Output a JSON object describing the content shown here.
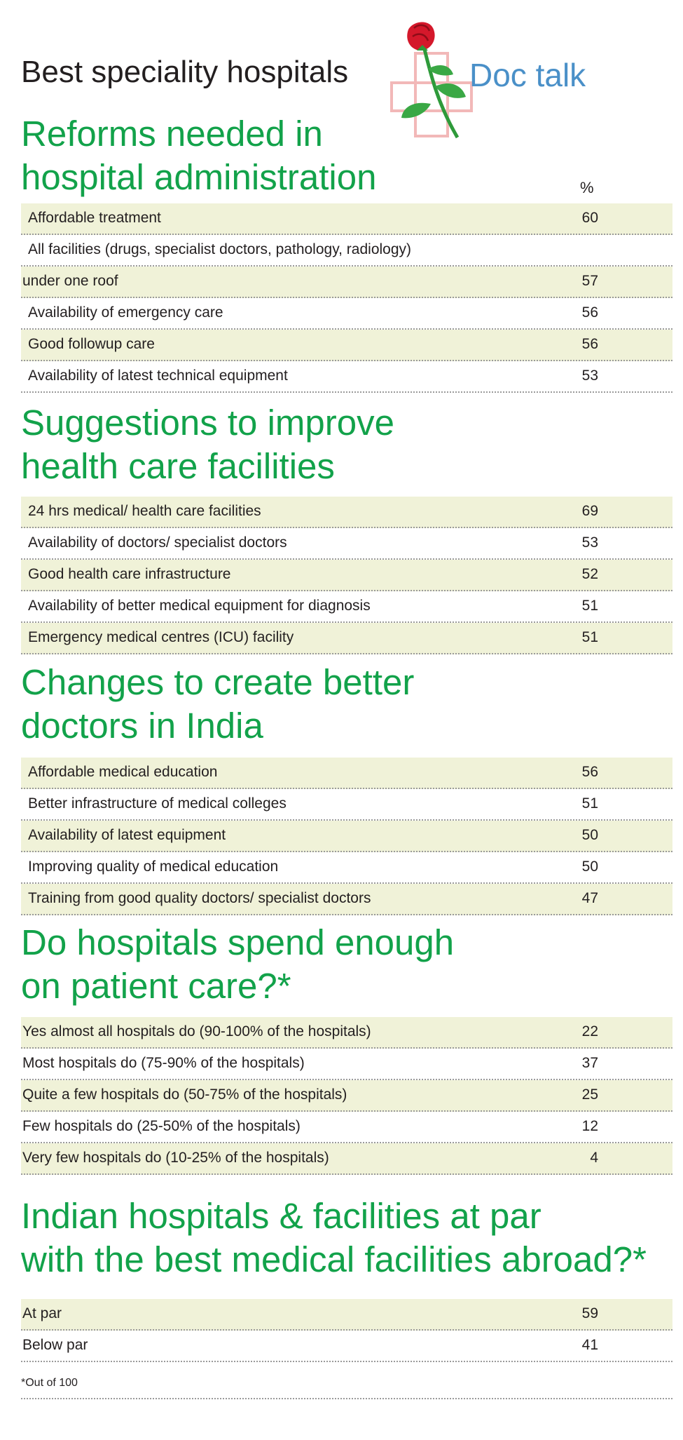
{
  "header": {
    "title": "Best speciality hospitals",
    "logo_text": "Doc talk"
  },
  "reforms": {
    "title_line1": "Reforms needed in",
    "title_line2": "hospital administration",
    "pct_label": "%",
    "rows": [
      {
        "label": "Affordable treatment",
        "value": "60"
      },
      {
        "label": "All facilities (drugs, specialist doctors, pathology, radiology)",
        "value": ""
      },
      {
        "label": "under one roof",
        "value": "57"
      },
      {
        "label": "Availability of emergency care",
        "value": "56"
      },
      {
        "label": "Good followup care",
        "value": "56"
      },
      {
        "label": "Availability of latest technical equipment",
        "value": "53"
      }
    ]
  },
  "suggestions": {
    "title_line1": "Suggestions to improve",
    "title_line2": "health care facilities",
    "rows": [
      {
        "label": "24 hrs medical/ health care facilities",
        "value": "69"
      },
      {
        "label": "Availability of doctors/ specialist doctors",
        "value": "53"
      },
      {
        "label": "Good health care infrastructure",
        "value": "52"
      },
      {
        "label": "Availability of better medical equipment for diagnosis",
        "value": "51"
      },
      {
        "label": "Emergency medical centres (ICU) facility",
        "value": "51"
      }
    ]
  },
  "changes": {
    "title_line1": "Changes to create better",
    "title_line2": "doctors in India",
    "rows": [
      {
        "label": "Affordable medical education",
        "value": "56"
      },
      {
        "label": "Better infrastructure of medical colleges",
        "value": "51"
      },
      {
        "label": "Availability of latest equipment",
        "value": "50"
      },
      {
        "label": "Improving quality of medical education",
        "value": "50"
      },
      {
        "label": "Training from good quality doctors/ specialist doctors",
        "value": "47"
      }
    ]
  },
  "spend": {
    "title_line1": "Do hospitals spend enough",
    "title_line2": "on patient care?*",
    "rows": [
      {
        "label": "Yes almost all hospitals do (90-100% of the hospitals)",
        "value": "22"
      },
      {
        "label": "Most hospitals do (75-90% of the hospitals)",
        "value": "37"
      },
      {
        "label": "Quite a few hospitals do (50-75% of the hospitals)",
        "value": "25"
      },
      {
        "label": "Few hospitals do (25-50% of the hospitals)",
        "value": "12"
      },
      {
        "label": "Very few hospitals do (10-25% of the hospitals)",
        "value": "4"
      }
    ]
  },
  "par": {
    "title_line1": "Indian hospitals & facilities at par",
    "title_line2": "with the best medical facilities abroad?*",
    "rows": [
      {
        "label": "At par",
        "value": "59"
      },
      {
        "label": "Below par",
        "value": "41"
      }
    ]
  },
  "footnote": "*Out of 100",
  "colors": {
    "heading_green": "#12a24a",
    "row_shade": "#f0f2d8",
    "logo_blue": "#4a90c8",
    "text": "#231f20"
  }
}
